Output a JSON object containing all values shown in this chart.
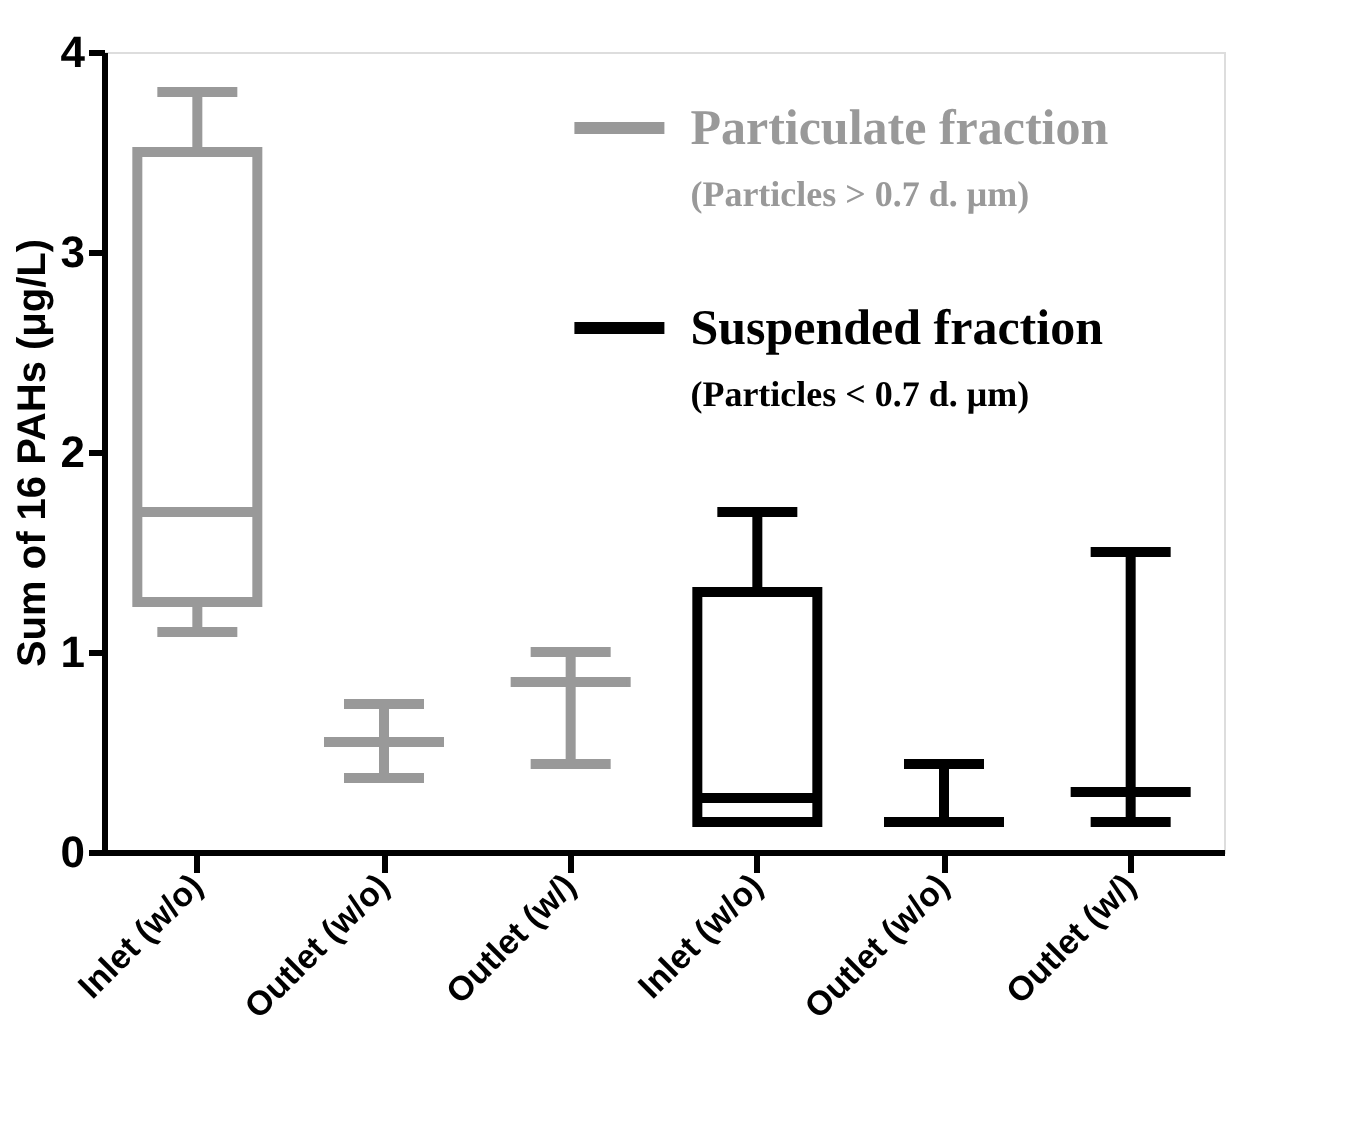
{
  "chart_data": {
    "type": "box",
    "ylabel": "Sum of 16 PAHs (μg/L)",
    "categories": [
      "Inlet (w/o)",
      "Outlet (w/o)",
      "Outlet (w/)",
      "Inlet (w/o)",
      "Outlet (w/o)",
      "Outlet (w/)"
    ],
    "series": [
      {
        "name": "Particulate fraction",
        "color": "#999999",
        "boxes": [
          {
            "low": 1.1,
            "q1": 1.25,
            "median": 1.7,
            "q3": 3.5,
            "high": 3.8
          },
          {
            "low": 0.37,
            "q1": 0.55,
            "median": 0.55,
            "q3": 0.55,
            "high": 0.74
          },
          {
            "low": 0.44,
            "q1": 0.85,
            "median": 0.85,
            "q3": 0.85,
            "high": 1.0
          },
          null,
          null,
          null
        ]
      },
      {
        "name": "Suspended fraction",
        "color": "#000000",
        "boxes": [
          null,
          null,
          null,
          {
            "low": 0.15,
            "q1": 0.15,
            "median": 0.27,
            "q3": 1.3,
            "high": 1.7
          },
          {
            "low": 0.15,
            "q1": 0.15,
            "median": 0.15,
            "q3": 0.15,
            "high": 0.44
          },
          {
            "low": 0.15,
            "q1": 0.3,
            "median": 0.3,
            "q3": 0.3,
            "high": 1.5
          }
        ]
      }
    ],
    "annotations": [
      "(Particles > 0.7 d. μm)",
      "(Particles < 0.7 d. μm)"
    ],
    "ylim": [
      0,
      4
    ],
    "yticks": [
      0,
      1,
      2,
      3,
      4
    ],
    "grid": false,
    "legend": "top right"
  }
}
